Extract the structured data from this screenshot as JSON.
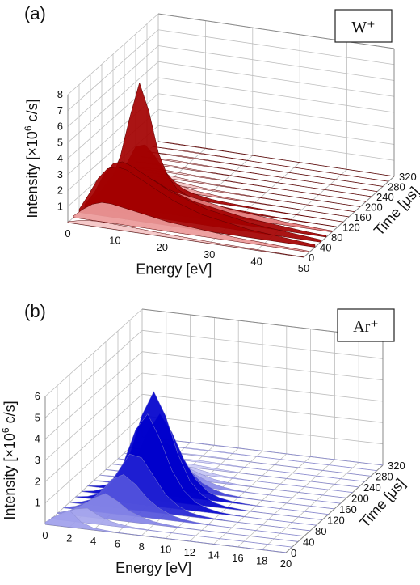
{
  "chart_data": [
    {
      "type": "surface3d",
      "panel_label": "(a)",
      "legend_box": "W⁺",
      "xlabel": "Energy [eV]",
      "ylabel": "Intensity [×10",
      "ylabel_sup": "6",
      "ylabel_unit": " c/s]",
      "zlabel": "Time [μs]",
      "x_ticks": [
        "0",
        "10",
        "20",
        "30",
        "40",
        "50"
      ],
      "y_ticks": [
        "1",
        "2",
        "3",
        "4",
        "5",
        "6",
        "7",
        "8"
      ],
      "z_ticks": [
        "0",
        "40",
        "80",
        "120",
        "160",
        "200",
        "240",
        "280",
        "320"
      ],
      "xlim": [
        0,
        50
      ],
      "ylim": [
        0,
        8
      ],
      "zlim": [
        0,
        320
      ],
      "color": "#cc0000",
      "time_us": [
        0,
        20,
        40,
        60,
        80,
        100,
        120,
        140,
        160,
        180,
        200,
        220,
        240,
        260,
        280,
        300,
        320
      ],
      "series_energy_eV": [
        0,
        2,
        4,
        6,
        8,
        10,
        12,
        14,
        16,
        18,
        20,
        22,
        24,
        26,
        28,
        30,
        32,
        34,
        36,
        38,
        40,
        42,
        44,
        46,
        48,
        50
      ],
      "intensity": [
        [
          0.05,
          0.2,
          0.3,
          0.35,
          0.35,
          0.32,
          0.3,
          0.28,
          0.25,
          0.22,
          0.2,
          0.18,
          0.16,
          0.14,
          0.12,
          0.1,
          0.09,
          0.08,
          0.07,
          0.06,
          0.05,
          0.04,
          0.04,
          0.03,
          0.03,
          0.02
        ],
        [
          0.1,
          0.6,
          1.0,
          1.2,
          1.2,
          1.1,
          1.0,
          0.9,
          0.8,
          0.7,
          0.6,
          0.55,
          0.5,
          0.45,
          0.4,
          0.35,
          0.3,
          0.25,
          0.22,
          0.2,
          0.18,
          0.15,
          0.12,
          0.1,
          0.08,
          0.06
        ],
        [
          0.2,
          1.2,
          2.3,
          3.0,
          3.2,
          3.1,
          2.8,
          2.5,
          2.2,
          1.9,
          1.6,
          1.4,
          1.2,
          1.0,
          0.9,
          0.8,
          0.7,
          0.6,
          0.5,
          0.45,
          0.4,
          0.35,
          0.3,
          0.25,
          0.2,
          0.15
        ],
        [
          0.2,
          1.0,
          2.2,
          3.0,
          3.2,
          3.0,
          2.7,
          2.4,
          2.1,
          1.8,
          1.6,
          1.4,
          1.2,
          1.0,
          0.9,
          0.8,
          0.7,
          0.6,
          0.5,
          0.45,
          0.4,
          0.35,
          0.3,
          0.25,
          0.2,
          0.15
        ],
        [
          0.1,
          0.7,
          1.6,
          2.2,
          2.4,
          2.3,
          2.1,
          1.9,
          1.6,
          1.4,
          1.2,
          1.0,
          0.9,
          0.8,
          0.7,
          0.6,
          0.5,
          0.45,
          0.4,
          0.35,
          0.3,
          0.25,
          0.2,
          0.15,
          0.12,
          0.1
        ],
        [
          0.1,
          0.5,
          1.1,
          1.6,
          1.8,
          1.7,
          1.5,
          1.3,
          1.1,
          1.0,
          0.9,
          0.8,
          0.7,
          0.6,
          0.5,
          0.45,
          0.4,
          0.35,
          0.3,
          0.25,
          0.2,
          0.18,
          0.15,
          0.12,
          0.1,
          0.08
        ],
        [
          0.1,
          0.8,
          2.5,
          5.0,
          7.2,
          5.5,
          3.0,
          1.6,
          0.9,
          0.6,
          0.4,
          0.3,
          0.25,
          0.2,
          0.15,
          0.12,
          0.1,
          0.08,
          0.06,
          0.05,
          0.04,
          0.03,
          0.03,
          0.02,
          0.02,
          0.01
        ],
        [
          0.1,
          0.6,
          1.6,
          2.8,
          3.0,
          2.4,
          1.6,
          1.0,
          0.6,
          0.4,
          0.3,
          0.2,
          0.15,
          0.12,
          0.1,
          0.08,
          0.06,
          0.05,
          0.04,
          0.03,
          0.03,
          0.02,
          0.02,
          0.01,
          0.01,
          0.01
        ],
        [
          0.05,
          0.3,
          0.7,
          1.0,
          1.1,
          0.9,
          0.6,
          0.4,
          0.3,
          0.2,
          0.15,
          0.1,
          0.08,
          0.06,
          0.05,
          0.04,
          0.03,
          0.03,
          0.02,
          0.02,
          0.01,
          0.01,
          0.01,
          0.01,
          0.01,
          0.01
        ],
        [
          0.03,
          0.15,
          0.3,
          0.4,
          0.4,
          0.35,
          0.25,
          0.2,
          0.15,
          0.1,
          0.08,
          0.06,
          0.05,
          0.04,
          0.03,
          0.03,
          0.02,
          0.02,
          0.01,
          0.01,
          0.01,
          0.01,
          0.01,
          0.01,
          0.01,
          0.01
        ],
        [
          0.02,
          0.08,
          0.15,
          0.2,
          0.2,
          0.18,
          0.14,
          0.1,
          0.08,
          0.06,
          0.05,
          0.04,
          0.03,
          0.03,
          0.02,
          0.02,
          0.01,
          0.01,
          0.01,
          0.01,
          0.01,
          0.01,
          0.01,
          0.01,
          0.01,
          0.01
        ],
        [
          0.02,
          0.05,
          0.1,
          0.12,
          0.12,
          0.1,
          0.08,
          0.06,
          0.05,
          0.04,
          0.03,
          0.03,
          0.02,
          0.02,
          0.02,
          0.01,
          0.01,
          0.01,
          0.01,
          0.01,
          0.01,
          0.01,
          0.01,
          0.01,
          0.01,
          0.01
        ],
        [
          0.01,
          0.04,
          0.07,
          0.09,
          0.09,
          0.08,
          0.06,
          0.05,
          0.04,
          0.03,
          0.03,
          0.02,
          0.02,
          0.02,
          0.01,
          0.01,
          0.01,
          0.01,
          0.01,
          0.01,
          0.01,
          0.01,
          0.01,
          0.01,
          0.01,
          0.01
        ],
        [
          0.01,
          0.03,
          0.05,
          0.07,
          0.07,
          0.06,
          0.05,
          0.04,
          0.03,
          0.03,
          0.02,
          0.02,
          0.02,
          0.01,
          0.01,
          0.01,
          0.01,
          0.01,
          0.01,
          0.01,
          0.01,
          0.01,
          0.01,
          0.01,
          0.01,
          0.01
        ],
        [
          0.01,
          0.02,
          0.04,
          0.05,
          0.05,
          0.05,
          0.04,
          0.03,
          0.03,
          0.02,
          0.02,
          0.02,
          0.01,
          0.01,
          0.01,
          0.01,
          0.01,
          0.01,
          0.01,
          0.01,
          0.01,
          0.01,
          0.01,
          0.01,
          0.01,
          0.01
        ],
        [
          0.01,
          0.02,
          0.03,
          0.04,
          0.04,
          0.04,
          0.03,
          0.03,
          0.02,
          0.02,
          0.02,
          0.01,
          0.01,
          0.01,
          0.01,
          0.01,
          0.01,
          0.01,
          0.01,
          0.01,
          0.01,
          0.01,
          0.01,
          0.01,
          0.01,
          0.01
        ],
        [
          0.01,
          0.02,
          0.03,
          0.03,
          0.03,
          0.03,
          0.03,
          0.02,
          0.02,
          0.02,
          0.01,
          0.01,
          0.01,
          0.01,
          0.01,
          0.01,
          0.01,
          0.01,
          0.01,
          0.01,
          0.01,
          0.01,
          0.01,
          0.01,
          0.01,
          0.01
        ]
      ]
    },
    {
      "type": "surface3d",
      "panel_label": "(b)",
      "legend_box": "Ar⁺",
      "xlabel": "Energy [eV]",
      "ylabel": "Intensity [×10",
      "ylabel_sup": "6",
      "ylabel_unit": " c/s]",
      "zlabel": "Time [μs]",
      "x_ticks": [
        "0",
        "2",
        "4",
        "6",
        "8",
        "10",
        "12",
        "14",
        "16",
        "18",
        "20"
      ],
      "y_ticks": [
        "1",
        "2",
        "3",
        "4",
        "5",
        "6"
      ],
      "z_ticks": [
        "0",
        "40",
        "80",
        "120",
        "160",
        "200",
        "240",
        "280",
        "320"
      ],
      "xlim": [
        0,
        20
      ],
      "ylim": [
        0,
        6
      ],
      "zlim": [
        0,
        320
      ],
      "color": "#0000cc",
      "time_us": [
        0,
        20,
        40,
        60,
        80,
        100,
        120,
        140,
        160,
        180,
        200,
        220,
        240,
        260,
        280,
        300,
        320
      ],
      "series_energy_eV": [
        0,
        1,
        2,
        3,
        4,
        5,
        6,
        7,
        8,
        9,
        10,
        11,
        12,
        13,
        14,
        15,
        16,
        17,
        18,
        19,
        20
      ],
      "intensity": [
        [
          0.1,
          0.5,
          0.8,
          0.3,
          0.1,
          0.05,
          0.02,
          0.01,
          0.01,
          0.01,
          0.01,
          0.01,
          0.01,
          0.01,
          0.01,
          0.01,
          0.01,
          0.01,
          0.01,
          0.01,
          0.01
        ],
        [
          0.05,
          0.3,
          0.6,
          0.7,
          0.4,
          0.2,
          0.1,
          0.05,
          0.02,
          0.01,
          0.01,
          0.01,
          0.01,
          0.01,
          0.01,
          0.01,
          0.01,
          0.01,
          0.01,
          0.01,
          0.01
        ],
        [
          0.03,
          0.2,
          0.5,
          0.9,
          1.2,
          0.9,
          0.5,
          0.3,
          0.15,
          0.08,
          0.04,
          0.02,
          0.01,
          0.01,
          0.01,
          0.01,
          0.01,
          0.01,
          0.01,
          0.01,
          0.01
        ],
        [
          0.02,
          0.15,
          0.4,
          0.9,
          1.6,
          1.9,
          1.5,
          0.9,
          0.5,
          0.25,
          0.12,
          0.06,
          0.03,
          0.01,
          0.01,
          0.01,
          0.01,
          0.01,
          0.01,
          0.01,
          0.01
        ],
        [
          0.02,
          0.1,
          0.3,
          0.8,
          1.7,
          2.6,
          2.5,
          1.7,
          0.9,
          0.45,
          0.2,
          0.1,
          0.05,
          0.02,
          0.01,
          0.01,
          0.01,
          0.01,
          0.01,
          0.01,
          0.01
        ],
        [
          0.02,
          0.1,
          0.3,
          0.8,
          1.9,
          3.5,
          4.3,
          3.2,
          1.8,
          0.9,
          0.4,
          0.2,
          0.08,
          0.04,
          0.02,
          0.01,
          0.01,
          0.01,
          0.01,
          0.01,
          0.01
        ],
        [
          0.02,
          0.1,
          0.3,
          0.8,
          2.0,
          3.9,
          5.1,
          4.0,
          2.3,
          1.1,
          0.5,
          0.22,
          0.1,
          0.05,
          0.02,
          0.01,
          0.01,
          0.01,
          0.01,
          0.01,
          0.01
        ],
        [
          0.02,
          0.08,
          0.25,
          0.6,
          1.5,
          2.9,
          3.8,
          3.0,
          1.8,
          0.9,
          0.4,
          0.18,
          0.08,
          0.04,
          0.02,
          0.01,
          0.01,
          0.01,
          0.01,
          0.01,
          0.01
        ],
        [
          0.01,
          0.05,
          0.15,
          0.4,
          0.9,
          1.7,
          2.2,
          1.8,
          1.0,
          0.5,
          0.25,
          0.1,
          0.05,
          0.02,
          0.01,
          0.01,
          0.01,
          0.01,
          0.01,
          0.01,
          0.01
        ],
        [
          0.01,
          0.03,
          0.1,
          0.25,
          0.5,
          0.9,
          1.1,
          0.9,
          0.55,
          0.3,
          0.15,
          0.07,
          0.03,
          0.01,
          0.01,
          0.01,
          0.01,
          0.01,
          0.01,
          0.01,
          0.01
        ],
        [
          0.01,
          0.02,
          0.06,
          0.15,
          0.3,
          0.5,
          0.6,
          0.5,
          0.3,
          0.15,
          0.08,
          0.04,
          0.02,
          0.01,
          0.01,
          0.01,
          0.01,
          0.01,
          0.01,
          0.01,
          0.01
        ],
        [
          0.01,
          0.02,
          0.04,
          0.08,
          0.15,
          0.25,
          0.3,
          0.25,
          0.15,
          0.08,
          0.04,
          0.02,
          0.01,
          0.01,
          0.01,
          0.01,
          0.01,
          0.01,
          0.01,
          0.01,
          0.01
        ],
        [
          0.01,
          0.01,
          0.03,
          0.05,
          0.08,
          0.12,
          0.15,
          0.12,
          0.08,
          0.05,
          0.03,
          0.01,
          0.01,
          0.01,
          0.01,
          0.01,
          0.01,
          0.01,
          0.01,
          0.01,
          0.01
        ],
        [
          0.01,
          0.01,
          0.02,
          0.03,
          0.05,
          0.07,
          0.08,
          0.07,
          0.05,
          0.03,
          0.02,
          0.01,
          0.01,
          0.01,
          0.01,
          0.01,
          0.01,
          0.01,
          0.01,
          0.01,
          0.01
        ],
        [
          0.01,
          0.01,
          0.01,
          0.02,
          0.03,
          0.04,
          0.05,
          0.04,
          0.03,
          0.02,
          0.01,
          0.01,
          0.01,
          0.01,
          0.01,
          0.01,
          0.01,
          0.01,
          0.01,
          0.01,
          0.01
        ],
        [
          0.01,
          0.01,
          0.01,
          0.02,
          0.02,
          0.03,
          0.03,
          0.03,
          0.02,
          0.02,
          0.01,
          0.01,
          0.01,
          0.01,
          0.01,
          0.01,
          0.01,
          0.01,
          0.01,
          0.01,
          0.01
        ],
        [
          0.01,
          0.01,
          0.01,
          0.01,
          0.02,
          0.02,
          0.02,
          0.02,
          0.02,
          0.01,
          0.01,
          0.01,
          0.01,
          0.01,
          0.01,
          0.01,
          0.01,
          0.01,
          0.01,
          0.01,
          0.01
        ]
      ]
    }
  ]
}
